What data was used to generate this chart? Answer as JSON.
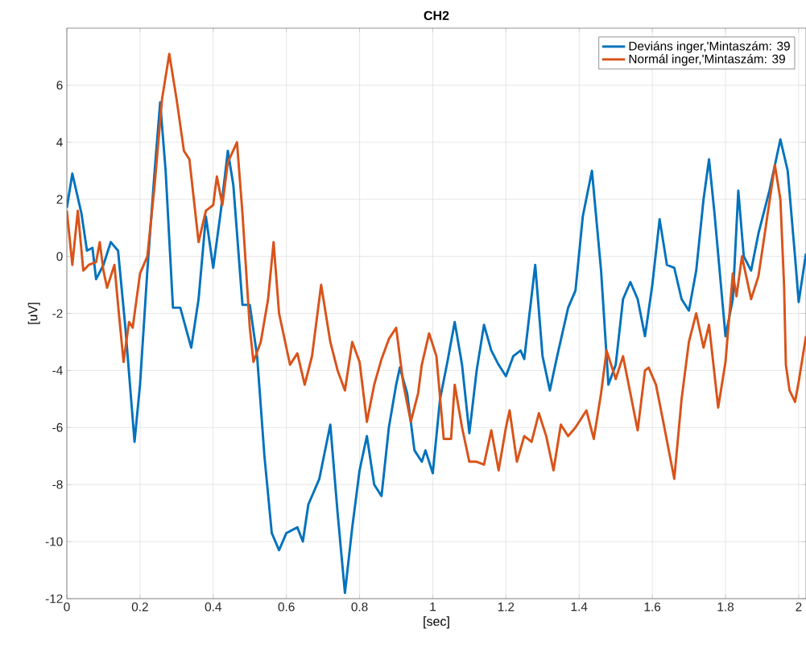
{
  "chart_data": {
    "type": "line",
    "title": "CH2",
    "xlabel": "[sec]",
    "ylabel": "[uV]",
    "xlim": [
      0,
      2.02
    ],
    "ylim": [
      -12,
      8
    ],
    "xticks": [
      0,
      0.2,
      0.4,
      0.6,
      0.8,
      1,
      1.2,
      1.4,
      1.6,
      1.8,
      2
    ],
    "yticks": [
      -12,
      -10,
      -8,
      -6,
      -4,
      -2,
      0,
      2,
      4,
      6
    ],
    "grid": true,
    "legend": "top right",
    "marker": "none",
    "line_style": "solid",
    "series": [
      {
        "name": "Deviáns inger,'Mintaszám: 39",
        "color": "#0072bd",
        "x": [
          0,
          0.015,
          0.04,
          0.055,
          0.07,
          0.08,
          0.1,
          0.12,
          0.14,
          0.16,
          0.185,
          0.2,
          0.22,
          0.24,
          0.255,
          0.27,
          0.29,
          0.31,
          0.34,
          0.36,
          0.38,
          0.4,
          0.42,
          0.44,
          0.455,
          0.48,
          0.5,
          0.52,
          0.54,
          0.56,
          0.58,
          0.6,
          0.63,
          0.645,
          0.66,
          0.69,
          0.72,
          0.74,
          0.76,
          0.78,
          0.8,
          0.82,
          0.84,
          0.86,
          0.88,
          0.9,
          0.91,
          0.93,
          0.95,
          0.97,
          0.98,
          1.0,
          1.02,
          1.04,
          1.06,
          1.08,
          1.1,
          1.12,
          1.14,
          1.16,
          1.18,
          1.2,
          1.22,
          1.24,
          1.25,
          1.28,
          1.3,
          1.32,
          1.34,
          1.37,
          1.39,
          1.41,
          1.435,
          1.46,
          1.48,
          1.5,
          1.52,
          1.54,
          1.56,
          1.58,
          1.6,
          1.62,
          1.64,
          1.66,
          1.68,
          1.7,
          1.72,
          1.74,
          1.755,
          1.77,
          1.8,
          1.82,
          1.835,
          1.85,
          1.87,
          1.89,
          1.92,
          1.95,
          1.97,
          1.99,
          2.0,
          2.02
        ],
        "values": [
          1.7,
          2.9,
          1.5,
          0.2,
          0.3,
          -0.8,
          -0.3,
          0.5,
          0.2,
          -2.5,
          -6.5,
          -4.5,
          -0.5,
          3,
          5.4,
          3,
          -1.8,
          -1.8,
          -3.2,
          -1.5,
          1.4,
          -0.4,
          1.5,
          3.7,
          2.5,
          -1.7,
          -1.7,
          -3.5,
          -7,
          -9.7,
          -10.3,
          -9.7,
          -9.5,
          -10,
          -8.7,
          -7.8,
          -5.9,
          -9,
          -11.8,
          -9.5,
          -7.5,
          -6.3,
          -8,
          -8.4,
          -6,
          -4.5,
          -3.9,
          -4.8,
          -6.8,
          -7.2,
          -6.8,
          -7.6,
          -5,
          -3.7,
          -2.3,
          -3.8,
          -6.2,
          -4,
          -2.4,
          -3.3,
          -3.8,
          -4.2,
          -3.5,
          -3.3,
          -3.6,
          -0.3,
          -3.5,
          -4.7,
          -3.5,
          -1.8,
          -1.2,
          1.4,
          3.0,
          -0.5,
          -4.5,
          -3.8,
          -1.5,
          -0.9,
          -1.5,
          -2.8,
          -1.0,
          1.3,
          -0.3,
          -0.4,
          -1.5,
          -1.9,
          -0.5,
          2.0,
          3.4,
          1.5,
          -2.8,
          -1.5,
          2.3,
          0,
          -0.5,
          0.8,
          2.3,
          4.1,
          3,
          0,
          -1.6,
          0.1
        ]
      },
      {
        "name": "Normál inger,'Mintaszám: 39",
        "color": "#d95319",
        "x": [
          0,
          0.015,
          0.03,
          0.045,
          0.06,
          0.08,
          0.09,
          0.1,
          0.11,
          0.13,
          0.14,
          0.155,
          0.17,
          0.18,
          0.2,
          0.22,
          0.24,
          0.26,
          0.28,
          0.3,
          0.32,
          0.335,
          0.36,
          0.38,
          0.4,
          0.41,
          0.425,
          0.44,
          0.465,
          0.48,
          0.5,
          0.51,
          0.53,
          0.55,
          0.565,
          0.58,
          0.61,
          0.63,
          0.65,
          0.67,
          0.695,
          0.72,
          0.74,
          0.76,
          0.78,
          0.8,
          0.82,
          0.84,
          0.86,
          0.88,
          0.9,
          0.92,
          0.94,
          0.96,
          0.97,
          0.99,
          1.01,
          1.03,
          1.05,
          1.06,
          1.08,
          1.1,
          1.12,
          1.14,
          1.16,
          1.18,
          1.2,
          1.21,
          1.23,
          1.25,
          1.27,
          1.29,
          1.31,
          1.33,
          1.35,
          1.37,
          1.39,
          1.42,
          1.44,
          1.46,
          1.475,
          1.5,
          1.52,
          1.54,
          1.56,
          1.58,
          1.59,
          1.61,
          1.63,
          1.66,
          1.68,
          1.7,
          1.72,
          1.74,
          1.755,
          1.78,
          1.8,
          1.82,
          1.83,
          1.845,
          1.86,
          1.87,
          1.89,
          1.92,
          1.935,
          1.95,
          1.96,
          1.965,
          1.975,
          1.99,
          2.0,
          2.02
        ],
        "values": [
          1.6,
          -0.3,
          1.6,
          -0.5,
          -0.3,
          -0.2,
          0.5,
          -0.5,
          -1.1,
          -0.3,
          -1.7,
          -3.7,
          -2.3,
          -2.5,
          -0.6,
          0,
          2.5,
          5.5,
          7.1,
          5.5,
          3.7,
          3.4,
          0.5,
          1.6,
          1.8,
          2.8,
          1.8,
          3.3,
          4.0,
          1.5,
          -2.5,
          -3.7,
          -3.0,
          -1.5,
          0.5,
          -2,
          -3.8,
          -3.4,
          -4.5,
          -3.5,
          -1.0,
          -3,
          -4.0,
          -4.7,
          -3.0,
          -3.7,
          -5.8,
          -4.5,
          -3.6,
          -2.9,
          -2.5,
          -4.5,
          -5.8,
          -4.8,
          -3.8,
          -2.7,
          -3.5,
          -6.4,
          -6.4,
          -4.5,
          -6.0,
          -7.2,
          -7.2,
          -7.3,
          -6.1,
          -7.5,
          -6.0,
          -5.4,
          -7.2,
          -6.3,
          -6.5,
          -5.5,
          -6.3,
          -7.5,
          -5.9,
          -6.3,
          -6.0,
          -5.4,
          -6.4,
          -4.8,
          -3.3,
          -4.3,
          -3.5,
          -4.8,
          -6.1,
          -4.0,
          -3.9,
          -4.5,
          -5.8,
          -7.8,
          -5,
          -3.0,
          -2.0,
          -3.2,
          -2.4,
          -5.3,
          -3.7,
          -0.6,
          -1.4,
          0.0,
          -0.9,
          -1.5,
          -0.7,
          1.9,
          3.2,
          2.0,
          -1.0,
          -3.8,
          -4.7,
          -5.1,
          -4.4,
          -2.8
        ]
      }
    ]
  }
}
